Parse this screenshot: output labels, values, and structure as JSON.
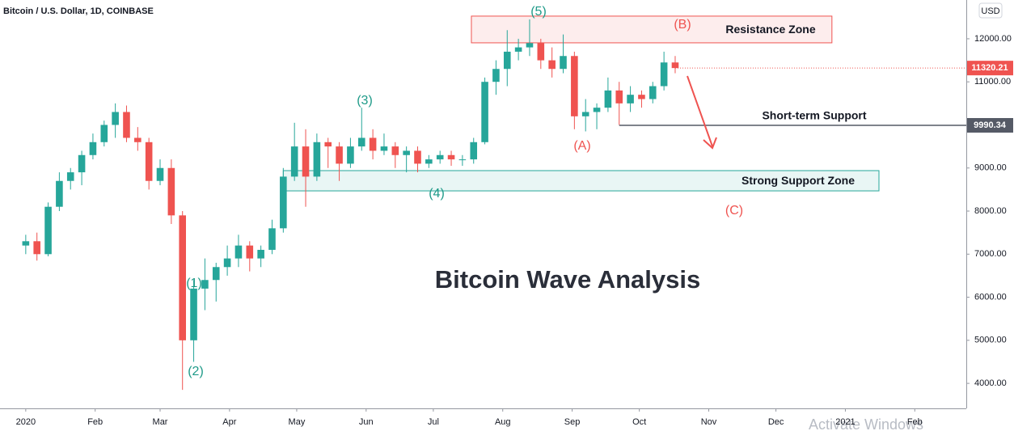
{
  "chart_data": {
    "type": "candlestick",
    "header": "Bitcoin / U.S. Dollar, 1D, COINBASE",
    "title": "Bitcoin Wave Analysis",
    "currency": "USD",
    "up_color": "#26a69a",
    "down_color": "#ef5350",
    "x": [
      0,
      5,
      10,
      15,
      20,
      25,
      30,
      35,
      40,
      45,
      50,
      55,
      60,
      65,
      70,
      75,
      80,
      85,
      90,
      95,
      100,
      105,
      110,
      115,
      120,
      125,
      130,
      135,
      140,
      145,
      150,
      155,
      160,
      165,
      170,
      175,
      180,
      185,
      190,
      195,
      200,
      205,
      210,
      215,
      220,
      225,
      230,
      235,
      240,
      245,
      250,
      255,
      260,
      265,
      270,
      275,
      280,
      285,
      290
    ],
    "open": [
      7200,
      7300,
      7000,
      8100,
      8700,
      8900,
      9300,
      9600,
      10000,
      10300,
      9700,
      9600,
      8700,
      9000,
      7900,
      5000,
      6200,
      6400,
      6700,
      6900,
      7200,
      6900,
      7100,
      7600,
      8800,
      9500,
      8800,
      9600,
      9500,
      9100,
      9500,
      9700,
      9400,
      9500,
      9300,
      9400,
      9100,
      9200,
      9300,
      9200,
      9200,
      9600,
      11000,
      11300,
      11700,
      11800,
      11900,
      11500,
      11300,
      11600,
      10200,
      10300,
      10400,
      10800,
      10500,
      10700,
      10600,
      10900,
      11450
    ],
    "high": [
      7450,
      7500,
      8200,
      8900,
      9000,
      9400,
      9800,
      10100,
      10500,
      10450,
      9950,
      9700,
      9200,
      9200,
      8000,
      6400,
      6900,
      6800,
      7200,
      7450,
      7300,
      7200,
      7800,
      9000,
      10050,
      9900,
      9800,
      9700,
      9600,
      9700,
      10400,
      9900,
      9800,
      9600,
      9500,
      9500,
      9300,
      9400,
      9400,
      9300,
      9700,
      11100,
      11500,
      12200,
      12000,
      12450,
      12000,
      11800,
      12100,
      11700,
      10600,
      10500,
      11100,
      11000,
      10900,
      10800,
      11000,
      11700,
      11600
    ],
    "low": [
      7000,
      6850,
      6950,
      8000,
      8500,
      8600,
      9200,
      9500,
      9700,
      9600,
      9400,
      8500,
      8600,
      7700,
      3850,
      4500,
      5700,
      5900,
      6500,
      6700,
      6600,
      6700,
      7000,
      7500,
      8700,
      8100,
      8700,
      9000,
      8700,
      9000,
      9400,
      9200,
      9300,
      9000,
      8900,
      8900,
      9000,
      9100,
      9050,
      9050,
      9100,
      9550,
      10700,
      10900,
      11500,
      11600,
      11300,
      11100,
      11200,
      9900,
      9850,
      9900,
      10300,
      10000,
      10300,
      10400,
      10500,
      10800,
      11200
    ],
    "close": [
      7300,
      7000,
      8100,
      8700,
      8900,
      9300,
      9600,
      10000,
      10300,
      9700,
      9600,
      8700,
      9000,
      7900,
      5000,
      6200,
      6400,
      6700,
      6900,
      7200,
      6900,
      7100,
      7600,
      8800,
      9500,
      8800,
      9600,
      9500,
      9100,
      9500,
      9700,
      9400,
      9500,
      9300,
      9400,
      9100,
      9200,
      9300,
      9200,
      9200,
      9600,
      11000,
      11300,
      11700,
      11800,
      11900,
      11500,
      11300,
      11600,
      10200,
      10300,
      10400,
      10800,
      10500,
      10700,
      10600,
      10900,
      11450,
      11320.21
    ],
    "xlim": [
      -11.5,
      420
    ],
    "xticks": [
      {
        "value": 0,
        "label": "2020"
      },
      {
        "value": 31,
        "label": "Feb"
      },
      {
        "value": 60,
        "label": "Mar"
      },
      {
        "value": 91,
        "label": "Apr"
      },
      {
        "value": 121,
        "label": "May"
      },
      {
        "value": 152,
        "label": "Jun"
      },
      {
        "value": 182,
        "label": "Jul"
      },
      {
        "value": 213,
        "label": "Aug"
      },
      {
        "value": 244,
        "label": "Sep"
      },
      {
        "value": 274,
        "label": "Oct"
      },
      {
        "value": 305,
        "label": "Nov"
      },
      {
        "value": 335,
        "label": "Dec"
      },
      {
        "value": 366,
        "label": "2021"
      },
      {
        "value": 397,
        "label": "Feb"
      }
    ],
    "ylim": [
      3420,
      12900
    ],
    "yticks": [
      {
        "value": 4000,
        "label": "4000.00"
      },
      {
        "value": 5000,
        "label": "5000.00"
      },
      {
        "value": 6000,
        "label": "6000.00"
      },
      {
        "value": 7000,
        "label": "7000.00"
      },
      {
        "value": 8000,
        "label": "8000.00"
      },
      {
        "value": 9000,
        "label": "9000.00"
      },
      {
        "value": 10000,
        "label": "10000.00"
      },
      {
        "value": 11000,
        "label": "11000.00"
      },
      {
        "value": 12000,
        "label": "12000.00"
      }
    ],
    "last_price": 11320.21,
    "support_price": 9990.34,
    "support_line": {
      "label": "Short-term Support",
      "x_start": 265
    },
    "zones": [
      {
        "label": "Resistance Zone",
        "x": [
          199,
          360
        ],
        "y": [
          11906,
          12526
        ],
        "color": "#ef5350"
      },
      {
        "label": "Strong Support Zone",
        "x": [
          115,
          381
        ],
        "y": [
          8469,
          8939
        ],
        "color": "#26a69a"
      }
    ],
    "wave_labels": [
      "(1)",
      "(2)",
      "(3)",
      "(4)",
      "(5)",
      "(A)",
      "(B)",
      "(C)"
    ],
    "watermark": "Activate Windows"
  }
}
